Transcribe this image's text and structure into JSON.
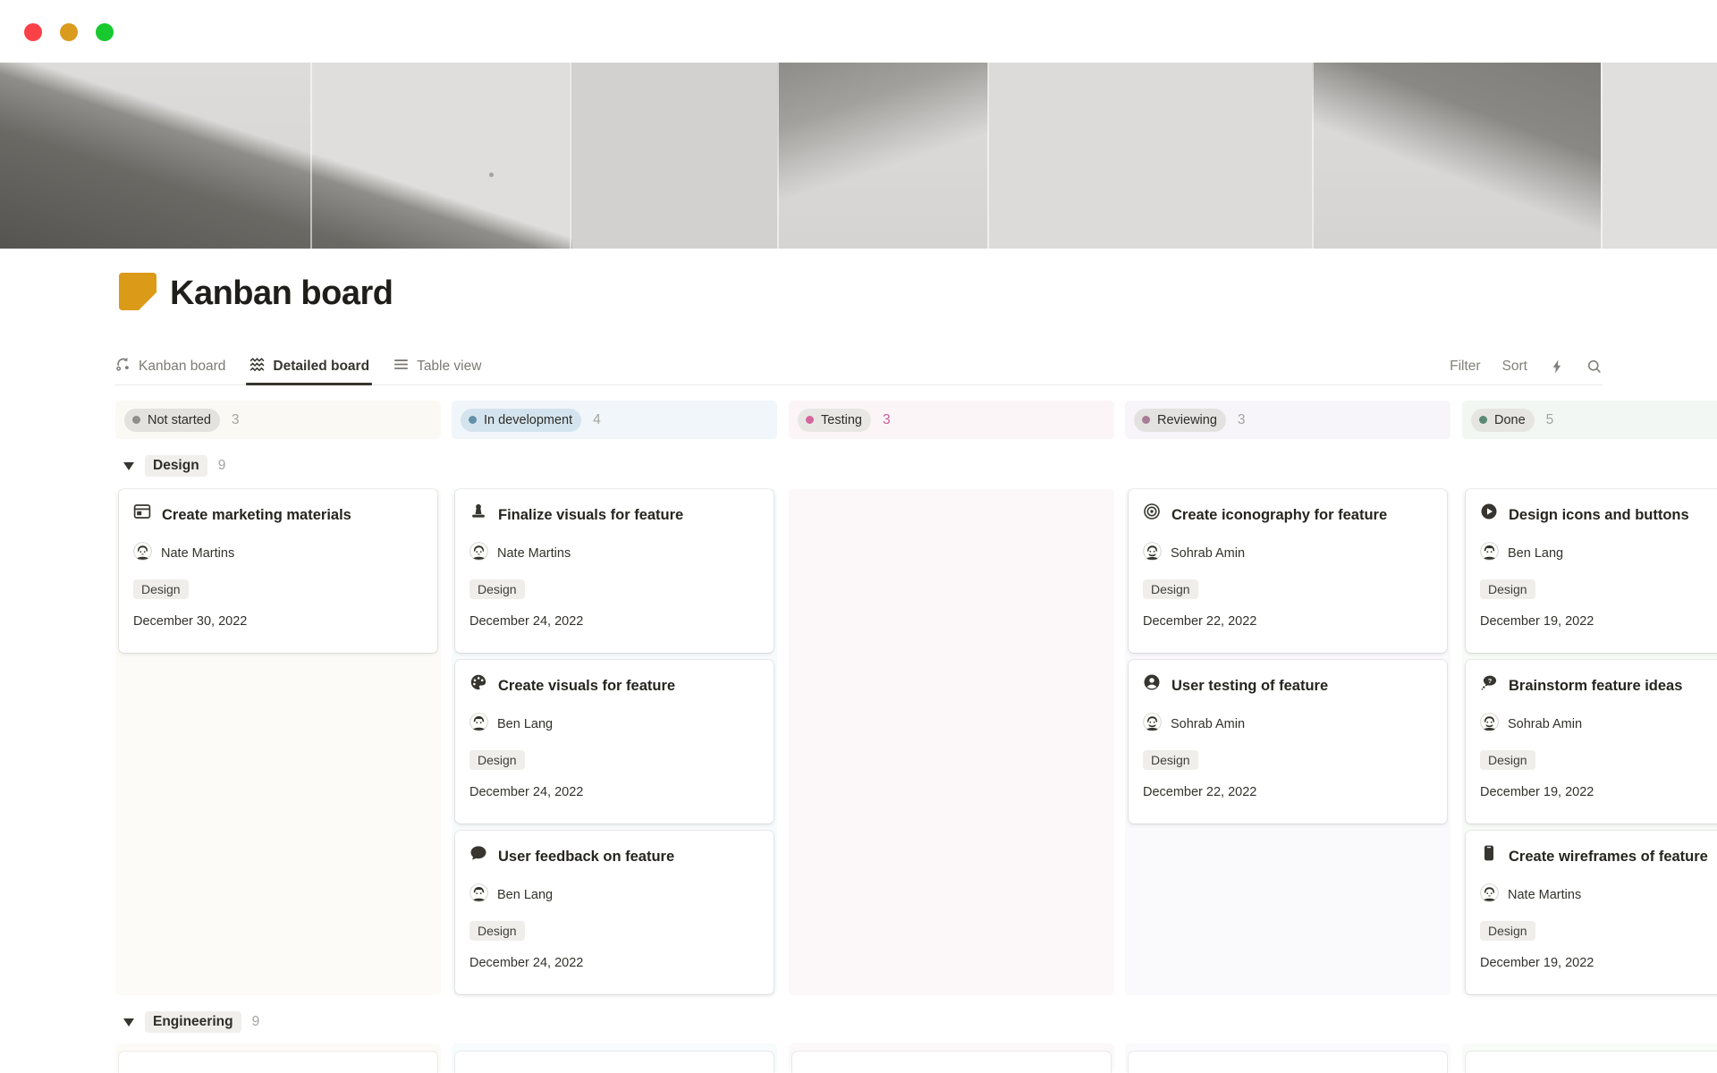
{
  "window": {
    "controls": [
      {
        "name": "close",
        "color": "#FB4148"
      },
      {
        "name": "minimize",
        "color": "#DA9C1E"
      },
      {
        "name": "zoom",
        "color": "#17C82F"
      }
    ]
  },
  "page": {
    "title": "Kanban board",
    "icon": "note-page-icon",
    "icon_color": "#DB9A18"
  },
  "views": {
    "tabs": [
      {
        "label": "Kanban board",
        "icon": "board-view-icon",
        "active": false
      },
      {
        "label": "Detailed board",
        "icon": "wave-board-icon",
        "active": true
      },
      {
        "label": "Table view",
        "icon": "table-list-icon",
        "active": false
      }
    ],
    "toolbar": {
      "filter": "Filter",
      "sort": "Sort",
      "icons": [
        "lightning-icon",
        "search-icon"
      ]
    }
  },
  "board": {
    "columns": [
      {
        "label": "Not started",
        "count": "3",
        "dot_color": "#8F8E8A",
        "pill_bg": "#E3E2DE",
        "count_color": "#A5A4A0",
        "header_bg": "#FAF9F4",
        "area_bg": "#FCFBF8"
      },
      {
        "label": "In development",
        "count": "4",
        "dot_color": "#6291A8",
        "pill_bg": "#D4E4EE",
        "count_color": "#A5A4A0",
        "header_bg": "#F0F6FA",
        "area_bg": "#F8FBFC"
      },
      {
        "label": "Testing",
        "count": "3",
        "dot_color": "#D4679D",
        "pill_bg": "#E9E7E4",
        "count_color": "#C65F96",
        "header_bg": "#FBF5F8",
        "area_bg": "#FCF8FA"
      },
      {
        "label": "Reviewing",
        "count": "3",
        "dot_color": "#A87C95",
        "pill_bg": "#E4E2E0",
        "count_color": "#A5A4A0",
        "header_bg": "#F7F5FA",
        "area_bg": "#FAF9FC"
      },
      {
        "label": "Done",
        "count": "5",
        "dot_color": "#5B8A76",
        "pill_bg": "#E6E5E1",
        "count_color": "#A5A4A0",
        "header_bg": "#F3F7F3",
        "area_bg": "#F9FBF9"
      }
    ],
    "groups": [
      {
        "label": "Design",
        "count": "9",
        "cards_by_column": [
          [
            {
              "icon": "window-icon",
              "title": "Create marketing materials",
              "assignee": "Nate Martins",
              "avatar": "nate",
              "tag": "Design",
              "date": "December 30, 2022"
            }
          ],
          [
            {
              "icon": "stamp-icon",
              "title": "Finalize visuals for feature",
              "assignee": "Nate Martins",
              "avatar": "nate",
              "tag": "Design",
              "date": "December 24, 2022"
            },
            {
              "icon": "palette-icon",
              "title": "Create visuals for feature",
              "assignee": "Ben Lang",
              "avatar": "ben",
              "tag": "Design",
              "date": "December 24, 2022"
            },
            {
              "icon": "speech-bubble-icon",
              "title": "User feedback on feature",
              "assignee": "Ben Lang",
              "avatar": "ben",
              "tag": "Design",
              "date": "December 24, 2022"
            }
          ],
          [],
          [
            {
              "icon": "bullseye-icon",
              "title": "Create iconography for feature",
              "assignee": "Sohrab Amin",
              "avatar": "sohrab",
              "tag": "Design",
              "date": "December 22, 2022"
            },
            {
              "icon": "user-circle-icon",
              "title": "User testing of feature",
              "assignee": "Sohrab Amin",
              "avatar": "sohrab",
              "tag": "Design",
              "date": "December 22, 2022"
            }
          ],
          [
            {
              "icon": "play-circle-icon",
              "title": "Design icons and buttons",
              "assignee": "Ben Lang",
              "avatar": "ben",
              "tag": "Design",
              "date": "December 19, 2022"
            },
            {
              "icon": "thought-bubble-icon",
              "title": "Brainstorm feature ideas",
              "assignee": "Sohrab Amin",
              "avatar": "sohrab",
              "tag": "Design",
              "date": "December 19, 2022"
            },
            {
              "icon": "phone-icon",
              "title": "Create wireframes of feature",
              "assignee": "Nate Martins",
              "avatar": "nate",
              "tag": "Design",
              "date": "December 19, 2022"
            }
          ]
        ]
      },
      {
        "label": "Engineering",
        "count": "9",
        "peek_cards_per_column": [
          1,
          1,
          1,
          1,
          1
        ]
      }
    ]
  }
}
